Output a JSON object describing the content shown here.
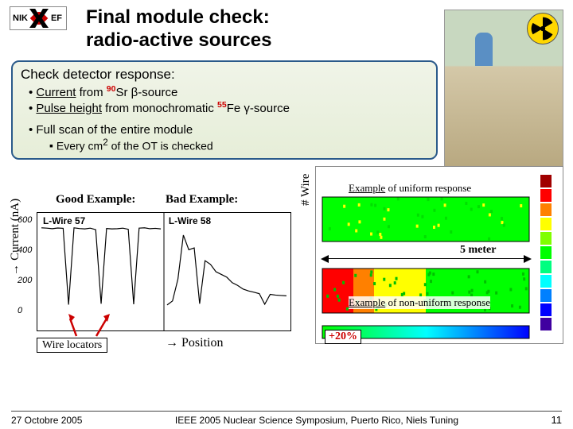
{
  "header": {
    "logo_left": "NIK",
    "logo_right": "EF",
    "title_line1": "Final module check:",
    "title_line2": "radio-active sources"
  },
  "box": {
    "title": "Check detector response:",
    "bullet1_a": "Current",
    "bullet1_b": " from ",
    "bullet1_iso_mass": "90",
    "bullet1_iso_el": "Sr",
    "bullet1_c": " β-source",
    "bullet2_a": "Pulse height",
    "bullet2_b": " from monochromatic ",
    "bullet2_iso_mass": "55",
    "bullet2_iso_el": "Fe",
    "bullet2_c": " γ-source",
    "bullet3": "Full scan of the entire module",
    "sub_a": "Every cm",
    "sub_exp": "2",
    "sub_b": " of the OT is checked"
  },
  "charts": {
    "y_left": "Current (nA)",
    "y_right": "# Wire",
    "good": "Good Example:",
    "bad": "Bad Example:",
    "lwire57": "L-Wire 57",
    "lwire58": "L-Wire 58",
    "yticks": [
      "600",
      "400",
      "200",
      "0"
    ],
    "position": "→ Position",
    "wire_locators": "Wire locators",
    "example_uniform": "Example of uniform response",
    "example_nonuniform": "Example of non-uniform response",
    "meter": "5 meter",
    "overshoot": "+20%",
    "line_good": [
      540,
      538,
      535,
      539,
      537,
      120,
      540,
      536,
      534,
      538,
      530,
      125,
      536,
      534,
      535,
      538,
      532,
      122,
      538,
      540,
      535,
      537,
      534
    ],
    "line_bad": [
      118,
      140,
      260,
      500,
      420,
      430,
      125,
      360,
      340,
      300,
      285,
      270,
      240,
      225,
      205,
      195,
      188,
      180,
      122,
      176,
      172,
      170,
      168
    ],
    "colorbar": [
      "#a00000",
      "#ff0000",
      "#ff8000",
      "#ffff00",
      "#80ff00",
      "#00ff00",
      "#00ff80",
      "#00ffff",
      "#0080ff",
      "#0000ff",
      "#4000a0"
    ]
  },
  "footer": {
    "date": "27 Octobre 2005",
    "center": "IEEE 2005 Nuclear Science Symposium, Puerto Rico, Niels Tuning",
    "page": "11"
  }
}
